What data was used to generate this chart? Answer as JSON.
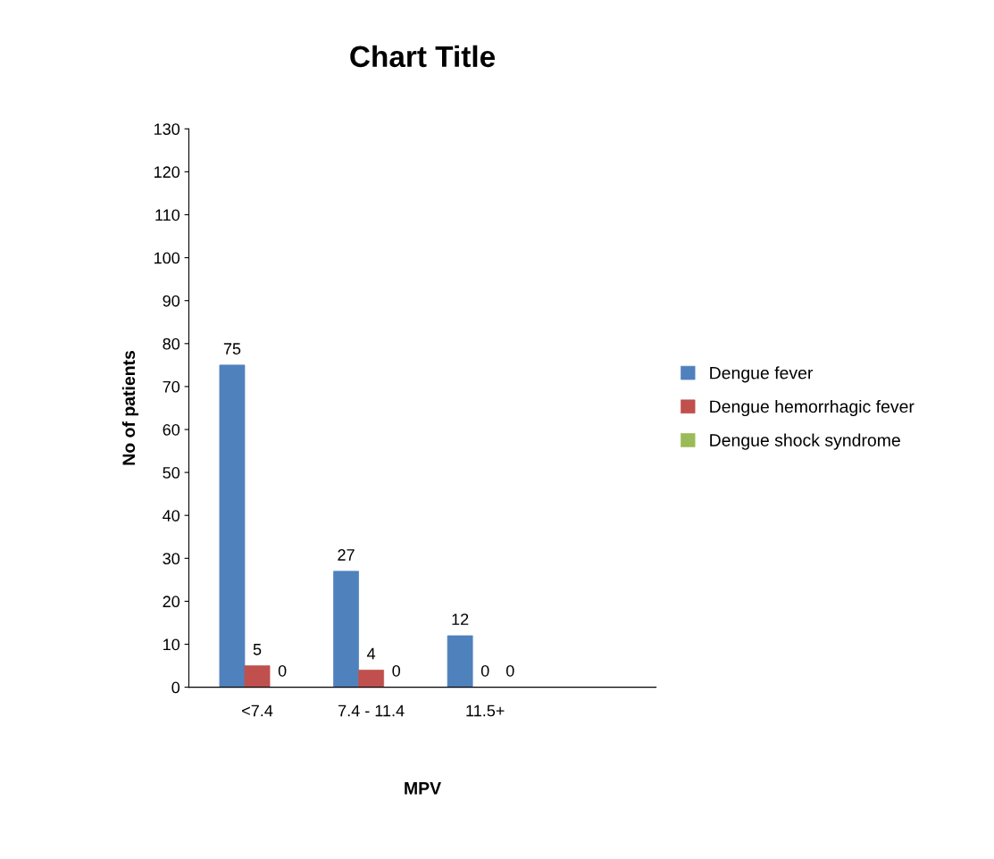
{
  "chart_data": {
    "type": "bar",
    "title": "Chart Title",
    "xlabel": "MPV",
    "ylabel": "No of patients",
    "categories": [
      "<7.4",
      "7.4 - 11.4",
      "11.5+"
    ],
    "series": [
      {
        "name": "Dengue fever",
        "color": "#4f81bd",
        "values": [
          75,
          27,
          12
        ]
      },
      {
        "name": "Dengue hemorrhagic fever",
        "color": "#c0504d",
        "values": [
          5,
          4,
          0
        ]
      },
      {
        "name": "Dengue shock syndrome",
        "color": "#9bbb59",
        "values": [
          0,
          0,
          0
        ]
      }
    ],
    "ylim": [
      0,
      130
    ],
    "yticks": [
      0,
      10,
      20,
      30,
      40,
      50,
      60,
      70,
      80,
      90,
      100,
      110,
      120,
      130
    ],
    "data_labels": true,
    "grid": false,
    "legend": "right"
  }
}
